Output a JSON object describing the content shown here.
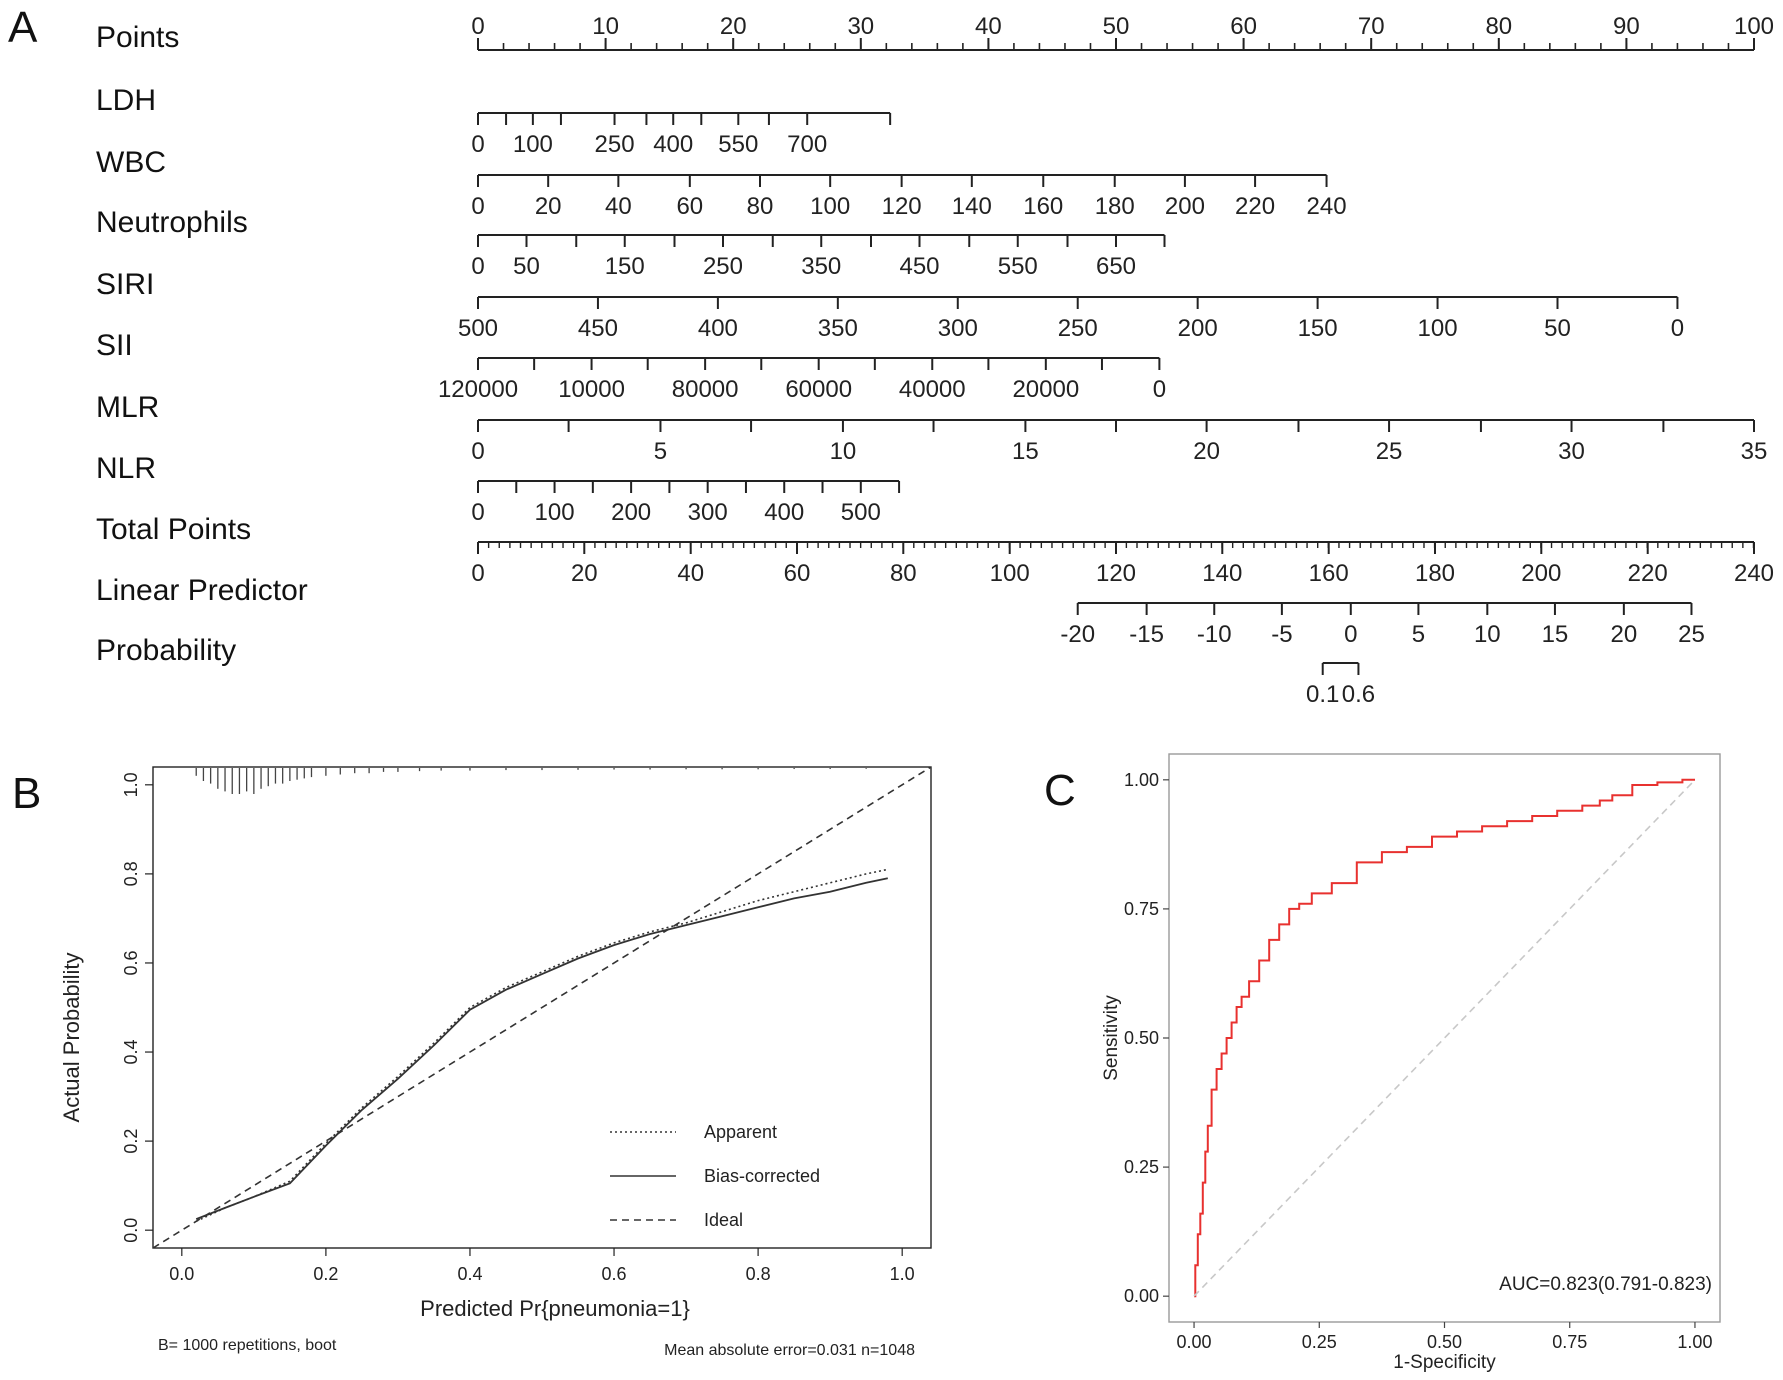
{
  "panel_labels": {
    "a": "A",
    "b": "B",
    "c": "C"
  },
  "chart_data": [
    {
      "type": "nomogram",
      "panel": "A",
      "scales": [
        {
          "name": "Points",
          "ticks": [
            {
              "label": "0",
              "points": 0
            },
            {
              "label": "10",
              "points": 10
            },
            {
              "label": "20",
              "points": 20
            },
            {
              "label": "30",
              "points": 30
            },
            {
              "label": "40",
              "points": 40
            },
            {
              "label": "50",
              "points": 50
            },
            {
              "label": "60",
              "points": 60
            },
            {
              "label": "70",
              "points": 70
            },
            {
              "label": "80",
              "points": 80
            },
            {
              "label": "90",
              "points": 90
            },
            {
              "label": "100",
              "points": 100
            }
          ],
          "minor_step": 2
        },
        {
          "name": "LDH",
          "ticks": [
            {
              "label": "0",
              "points": 0
            },
            {
              "label": "",
              "points": 2.2
            },
            {
              "label": "100",
              "points": 4.3
            },
            {
              "label": "",
              "points": 6.5
            },
            {
              "label": "250",
              "points": 10.7
            },
            {
              "label": "",
              "points": 13.2
            },
            {
              "label": "400",
              "points": 15.3
            },
            {
              "label": "",
              "points": 17.5
            },
            {
              "label": "550",
              "points": 20.4
            },
            {
              "label": "",
              "points": 22.8
            },
            {
              "label": "700",
              "points": 25.8
            },
            {
              "label": "",
              "points": 32.3
            }
          ]
        },
        {
          "name": "WBC",
          "ticks": [
            {
              "label": "0",
              "points": 0
            },
            {
              "label": "20",
              "points": 5.5
            },
            {
              "label": "40",
              "points": 11
            },
            {
              "label": "60",
              "points": 16.6
            },
            {
              "label": "80",
              "points": 22.1
            },
            {
              "label": "100",
              "points": 27.6
            },
            {
              "label": "120",
              "points": 33.2
            },
            {
              "label": "140",
              "points": 38.7
            },
            {
              "label": "160",
              "points": 44.3
            },
            {
              "label": "180",
              "points": 49.9
            },
            {
              "label": "200",
              "points": 55.4
            },
            {
              "label": "220",
              "points": 60.9
            },
            {
              "label": "240",
              "points": 66.5
            }
          ]
        },
        {
          "name": "Neutrophils",
          "ticks": [
            {
              "label": "0",
              "points": 0
            },
            {
              "label": "50",
              "points": 3.8
            },
            {
              "label": "",
              "points": 7.7
            },
            {
              "label": "150",
              "points": 11.5
            },
            {
              "label": "",
              "points": 15.4
            },
            {
              "label": "250",
              "points": 19.2
            },
            {
              "label": "",
              "points": 23.1
            },
            {
              "label": "350",
              "points": 26.9
            },
            {
              "label": "",
              "points": 30.8
            },
            {
              "label": "450",
              "points": 34.6
            },
            {
              "label": "",
              "points": 38.5
            },
            {
              "label": "550",
              "points": 42.3
            },
            {
              "label": "",
              "points": 46.2
            },
            {
              "label": "650",
              "points": 50
            },
            {
              "label": "",
              "points": 53.8
            }
          ]
        },
        {
          "name": "SIRI",
          "ticks": [
            {
              "label": "500",
              "points": 0
            },
            {
              "label": "450",
              "points": 9.4
            },
            {
              "label": "400",
              "points": 18.8
            },
            {
              "label": "350",
              "points": 28.2
            },
            {
              "label": "300",
              "points": 37.6
            },
            {
              "label": "250",
              "points": 47
            },
            {
              "label": "200",
              "points": 56.4
            },
            {
              "label": "150",
              "points": 65.8
            },
            {
              "label": "100",
              "points": 75.2
            },
            {
              "label": "50",
              "points": 84.6
            },
            {
              "label": "0",
              "points": 94
            }
          ]
        },
        {
          "name": "SII",
          "ticks": [
            {
              "label": "120000",
              "points": 0
            },
            {
              "label": "",
              "points": 4.4
            },
            {
              "label": "10000",
              "points": 8.9
            },
            {
              "label": "",
              "points": 13.3
            },
            {
              "label": "80000",
              "points": 17.8
            },
            {
              "label": "",
              "points": 22.2
            },
            {
              "label": "60000",
              "points": 26.7
            },
            {
              "label": "",
              "points": 31.1
            },
            {
              "label": "40000",
              "points": 35.6
            },
            {
              "label": "",
              "points": 40
            },
            {
              "label": "20000",
              "points": 44.5
            },
            {
              "label": "",
              "points": 48.9
            },
            {
              "label": "0",
              "points": 53.4
            }
          ]
        },
        {
          "name": "MLR",
          "ticks": [
            {
              "label": "0",
              "points": 0
            },
            {
              "label": "",
              "points": 7.1
            },
            {
              "label": "5",
              "points": 14.3
            },
            {
              "label": "",
              "points": 21.4
            },
            {
              "label": "10",
              "points": 28.6
            },
            {
              "label": "",
              "points": 35.7
            },
            {
              "label": "15",
              "points": 42.9
            },
            {
              "label": "",
              "points": 50
            },
            {
              "label": "20",
              "points": 57.1
            },
            {
              "label": "",
              "points": 64.3
            },
            {
              "label": "25",
              "points": 71.4
            },
            {
              "label": "",
              "points": 78.6
            },
            {
              "label": "30",
              "points": 85.7
            },
            {
              "label": "",
              "points": 92.9
            },
            {
              "label": "35",
              "points": 100
            }
          ]
        },
        {
          "name": "NLR",
          "ticks": [
            {
              "label": "0",
              "points": 0
            },
            {
              "label": "",
              "points": 3
            },
            {
              "label": "100",
              "points": 6
            },
            {
              "label": "",
              "points": 9
            },
            {
              "label": "200",
              "points": 12
            },
            {
              "label": "",
              "points": 15
            },
            {
              "label": "300",
              "points": 18
            },
            {
              "label": "",
              "points": 21
            },
            {
              "label": "400",
              "points": 24
            },
            {
              "label": "",
              "points": 27
            },
            {
              "label": "500",
              "points": 30
            },
            {
              "label": "",
              "points": 33
            }
          ]
        },
        {
          "name": "Total Points",
          "ticks": [
            {
              "label": "0",
              "points": 0
            },
            {
              "label": "20",
              "points": 8.33
            },
            {
              "label": "40",
              "points": 16.67
            },
            {
              "label": "60",
              "points": 25
            },
            {
              "label": "80",
              "points": 33.33
            },
            {
              "label": "100",
              "points": 41.67
            },
            {
              "label": "120",
              "points": 50
            },
            {
              "label": "140",
              "points": 58.33
            },
            {
              "label": "160",
              "points": 66.67
            },
            {
              "label": "180",
              "points": 75
            },
            {
              "label": "200",
              "points": 83.33
            },
            {
              "label": "220",
              "points": 91.67
            },
            {
              "label": "240",
              "points": 100
            }
          ],
          "minor_step": 0.833
        },
        {
          "name": "Linear Predictor",
          "ticks": [
            {
              "label": "-20",
              "points": 47
            },
            {
              "label": "-15",
              "points": 52.4
            },
            {
              "label": "-10",
              "points": 57.7
            },
            {
              "label": "-5",
              "points": 63
            },
            {
              "label": "0",
              "points": 68.4
            },
            {
              "label": "5",
              "points": 73.7
            },
            {
              "label": "10",
              "points": 79.1
            },
            {
              "label": "15",
              "points": 84.4
            },
            {
              "label": "20",
              "points": 89.8
            },
            {
              "label": "25",
              "points": 95.1
            }
          ]
        },
        {
          "name": "Probability",
          "ticks": [
            {
              "label": "0.1",
              "points": 66.2
            },
            {
              "label": "0.6",
              "points": 69
            }
          ]
        }
      ]
    },
    {
      "type": "line",
      "panel": "B",
      "xlabel": "Predicted Pr{pneumonia=1}",
      "ylabel": "Actual Probability",
      "xlim": [
        -0.04,
        1.04
      ],
      "ylim": [
        -0.04,
        1.04
      ],
      "xticks": [
        "0.0",
        "0.2",
        "0.4",
        "0.6",
        "0.8",
        "1.0"
      ],
      "yticks": [
        "0.0",
        "0.2",
        "0.4",
        "0.6",
        "0.8",
        "1.0"
      ],
      "series": [
        {
          "name": "Apparent",
          "style": "dotted",
          "x": [
            0.02,
            0.06,
            0.1,
            0.15,
            0.2,
            0.25,
            0.3,
            0.35,
            0.4,
            0.45,
            0.5,
            0.55,
            0.6,
            0.65,
            0.7,
            0.75,
            0.8,
            0.85,
            0.9,
            0.95,
            0.98
          ],
          "y": [
            0.02,
            0.05,
            0.075,
            0.11,
            0.195,
            0.275,
            0.345,
            0.42,
            0.5,
            0.545,
            0.58,
            0.615,
            0.645,
            0.67,
            0.69,
            0.715,
            0.74,
            0.76,
            0.78,
            0.8,
            0.81
          ]
        },
        {
          "name": "Bias-corrected",
          "style": "solid",
          "x": [
            0.02,
            0.06,
            0.1,
            0.15,
            0.2,
            0.25,
            0.3,
            0.35,
            0.4,
            0.45,
            0.5,
            0.55,
            0.6,
            0.65,
            0.7,
            0.75,
            0.8,
            0.85,
            0.9,
            0.95,
            0.98
          ],
          "y": [
            0.025,
            0.05,
            0.075,
            0.105,
            0.19,
            0.27,
            0.34,
            0.415,
            0.495,
            0.54,
            0.575,
            0.61,
            0.64,
            0.665,
            0.685,
            0.705,
            0.725,
            0.745,
            0.76,
            0.78,
            0.79
          ]
        },
        {
          "name": "Ideal",
          "style": "dashed",
          "x": [
            -0.04,
            1.04
          ],
          "y": [
            -0.04,
            1.04
          ]
        }
      ],
      "rug_x": [
        0.02,
        0.03,
        0.04,
        0.05,
        0.06,
        0.07,
        0.08,
        0.09,
        0.1,
        0.11,
        0.12,
        0.13,
        0.14,
        0.15,
        0.16,
        0.17,
        0.18,
        0.2,
        0.22,
        0.24,
        0.26,
        0.28,
        0.3,
        0.33,
        0.36,
        0.4,
        0.45,
        0.5,
        0.55,
        0.6,
        0.65,
        0.7,
        0.75,
        0.8,
        0.85,
        0.9,
        0.95
      ],
      "rug_h": [
        0.3,
        0.5,
        0.6,
        0.8,
        0.9,
        1.0,
        1.0,
        0.9,
        1.0,
        0.8,
        0.7,
        0.6,
        0.6,
        0.5,
        0.45,
        0.4,
        0.35,
        0.3,
        0.25,
        0.2,
        0.2,
        0.15,
        0.15,
        0.12,
        0.1,
        0.1,
        0.08,
        0.08,
        0.07,
        0.06,
        0.06,
        0.05,
        0.05,
        0.05,
        0.04,
        0.04,
        0.03
      ],
      "legend": [
        "Apparent",
        "Bias-corrected",
        "Ideal"
      ],
      "legend_position": "bottom-right",
      "footnote_left": "B= 1000 repetitions, boot",
      "footnote_right": "Mean absolute error=0.031 n=1048"
    },
    {
      "type": "line",
      "panel": "C",
      "xlabel": "1-Specificity",
      "ylabel": "Sensitivity",
      "xlim": [
        -0.05,
        1.05
      ],
      "ylim": [
        -0.05,
        1.05
      ],
      "xticks": [
        "0.00",
        "0.25",
        "0.50",
        "0.75",
        "1.00"
      ],
      "yticks": [
        "0.00",
        "0.25",
        "0.50",
        "0.75",
        "1.00"
      ],
      "series": [
        {
          "name": "ROC",
          "color": "#e8312f",
          "x": [
            0,
            0.005,
            0.01,
            0.015,
            0.02,
            0.025,
            0.03,
            0.04,
            0.05,
            0.06,
            0.07,
            0.08,
            0.09,
            0.1,
            0.12,
            0.14,
            0.16,
            0.18,
            0.2,
            0.22,
            0.25,
            0.3,
            0.35,
            0.4,
            0.45,
            0.5,
            0.55,
            0.6,
            0.65,
            0.7,
            0.75,
            0.8,
            0.82,
            0.85,
            0.9,
            0.95,
            1.0
          ],
          "y": [
            0,
            0.06,
            0.12,
            0.16,
            0.22,
            0.28,
            0.33,
            0.4,
            0.44,
            0.47,
            0.5,
            0.53,
            0.56,
            0.58,
            0.61,
            0.65,
            0.69,
            0.72,
            0.75,
            0.76,
            0.78,
            0.8,
            0.84,
            0.86,
            0.87,
            0.89,
            0.9,
            0.91,
            0.92,
            0.93,
            0.94,
            0.95,
            0.96,
            0.97,
            0.99,
            0.995,
            1.0
          ]
        },
        {
          "name": "Reference",
          "style": "dashed",
          "color": "#c8c8c8",
          "x": [
            0,
            1
          ],
          "y": [
            0,
            1
          ]
        }
      ],
      "annotation": "AUC=0.823(0.791-0.823)"
    }
  ]
}
